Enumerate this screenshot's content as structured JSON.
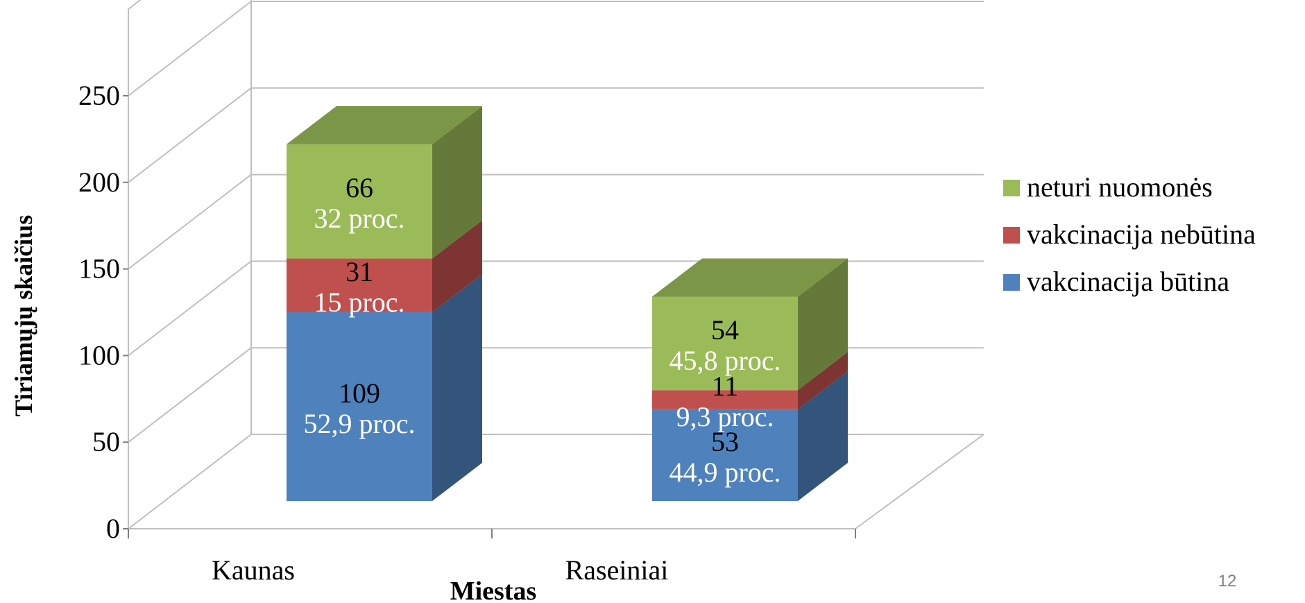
{
  "chart_data": {
    "type": "bar",
    "stacked": true,
    "three_d": true,
    "categories": [
      "Kaunas",
      "Raseiniai"
    ],
    "series": [
      {
        "name": "vakcinacija būtina",
        "values": [
          109,
          53
        ],
        "labels": [
          "52,9 proc.",
          "44,9 proc."
        ],
        "color": "#4f81bd"
      },
      {
        "name": "vakcinacija nebūtina",
        "values": [
          31,
          11
        ],
        "labels": [
          "15 proc.",
          "9,3 proc."
        ],
        "color": "#c0504d"
      },
      {
        "name": "neturi nuomonės",
        "values": [
          66,
          54
        ],
        "labels": [
          "32 proc.",
          "45,8 proc."
        ],
        "color": "#9bbb59"
      }
    ],
    "xlabel": "Miestas",
    "ylabel": "Tiriamųjų skaičius",
    "ylim": [
      0,
      250
    ],
    "yticks": [
      "0",
      "50",
      "100",
      "150",
      "200",
      "250"
    ],
    "grid": true,
    "legend": "right"
  },
  "slide_number": "12"
}
